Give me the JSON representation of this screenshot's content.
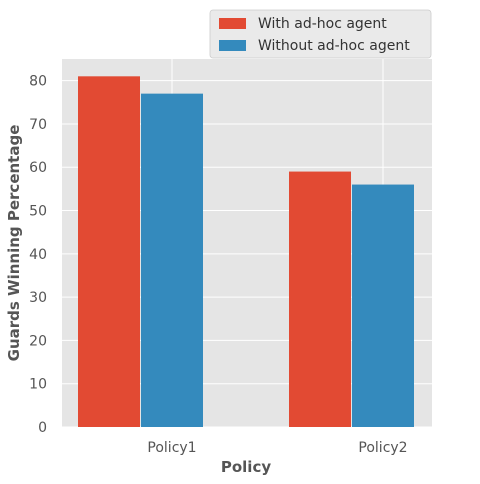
{
  "chart_data": {
    "type": "bar",
    "categories": [
      "Policy1",
      "Policy2"
    ],
    "series": [
      {
        "name": "With ad-hoc agent",
        "values": [
          81,
          59
        ],
        "color": "#E24A33"
      },
      {
        "name": "Without ad-hoc agent",
        "values": [
          77,
          56
        ],
        "color": "#348ABD"
      }
    ],
    "title": "",
    "xlabel": "Policy",
    "ylabel": "Guards Winning Percentage",
    "ylim": [
      0,
      85
    ],
    "yticks": [
      0,
      10,
      20,
      30,
      40,
      50,
      60,
      70,
      80
    ],
    "grid": true,
    "legend_position": "top-right",
    "background": "#E5E5E5",
    "gridline_color": "#FFFFFF",
    "text_color": "#555555"
  }
}
